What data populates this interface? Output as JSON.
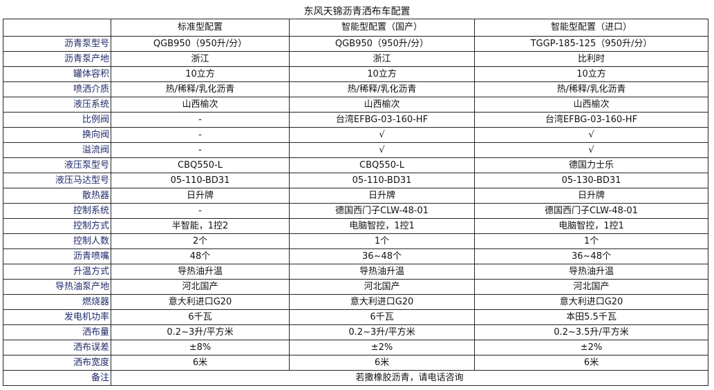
{
  "title": "东风天锦沥青洒布车配置",
  "columns": [
    "",
    "标准型配置",
    "智能型配置（国产）",
    "智能型配置（进口）"
  ],
  "rows": [
    {
      "label": "沥青泵型号",
      "values": [
        "QGB950（950升/分）",
        "QGB950（950升/分）",
        "TGGP-185-125（950升/分）"
      ]
    },
    {
      "label": "沥青泵产地",
      "values": [
        "浙江",
        "浙江",
        "比利时"
      ]
    },
    {
      "label": "罐体容积",
      "values": [
        "10立方",
        "10立方",
        "10立方"
      ]
    },
    {
      "label": "喷洒介质",
      "values": [
        "热/稀释/乳化沥青",
        "热/稀释/乳化沥青",
        "热/稀释/乳化沥青"
      ]
    },
    {
      "label": "液压系统",
      "values": [
        "山西榆次",
        "山西榆次",
        "山西榆次"
      ]
    },
    {
      "label": "比例阀",
      "values": [
        "-",
        "台湾EFBG-03-160-HF",
        "台湾EFBG-03-160-HF"
      ]
    },
    {
      "label": "换向阀",
      "values": [
        "-",
        "√",
        "√"
      ]
    },
    {
      "label": "溢流阀",
      "values": [
        "-",
        "√",
        "√"
      ]
    },
    {
      "label": "液压泵型号",
      "values": [
        "CBQ550-L",
        "CBQ550-L",
        "德国力士乐"
      ]
    },
    {
      "label": "液压马达型号",
      "values": [
        "05-110-BD31",
        "05-110-BD31",
        "05-130-BD31"
      ]
    },
    {
      "label": "散热器",
      "values": [
        "日升牌",
        "日升牌",
        "日升牌"
      ]
    },
    {
      "label": "控制系统",
      "values": [
        "-",
        "德国西门子CLW-48-01",
        "德国西门子CLW-48-01"
      ]
    },
    {
      "label": "控制方式",
      "values": [
        "半智能，1控2",
        "电脑智控，1控1",
        "电脑智控，1控1"
      ]
    },
    {
      "label": "控制人数",
      "values": [
        "2个",
        "1个",
        "1个"
      ]
    },
    {
      "label": "沥青喷嘴",
      "values": [
        "48个",
        "36~48个",
        "36~48个"
      ]
    },
    {
      "label": "升温方式",
      "values": [
        "导热油升温",
        "导热油升温",
        "导热油升温"
      ]
    },
    {
      "label": "导热油泵产地",
      "values": [
        "河北国产",
        "河北国产",
        "河北国产"
      ]
    },
    {
      "label": "燃烧器",
      "values": [
        "意大利进口G20",
        "意大利进口G20",
        "意大利进口G20"
      ]
    },
    {
      "label": "发电机功率",
      "values": [
        "6千瓦",
        "6千瓦",
        "本田5.5千瓦"
      ]
    },
    {
      "label": "洒布量",
      "values": [
        "0.2~3升/平方米",
        "0.2~3升/平方米",
        "0.2~3.5升/平方米"
      ]
    },
    {
      "label": "洒布误差",
      "values": [
        "±8%",
        "±2%",
        "±2%"
      ]
    },
    {
      "label": "洒布宽度",
      "values": [
        "6米",
        "6米",
        "6米"
      ]
    }
  ],
  "remark": {
    "label": "备注",
    "value": "若撒橡胶沥青，请电话咨询"
  }
}
